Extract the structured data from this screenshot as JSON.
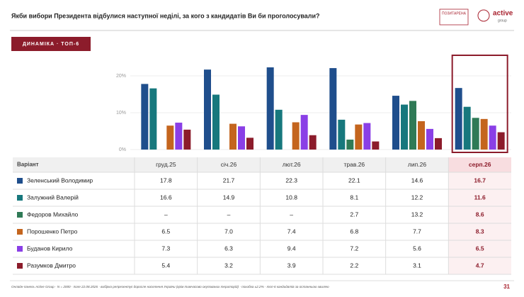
{
  "chart_data": {
    "type": "bar",
    "title": "Якби вибори Президента відбулися наступної неділі, за кого з кандидатів Ви би проголосували?",
    "badge": "ДИНАМІКА · ТОП-6",
    "table_header": "Варіант",
    "footer": "Онлайн-панель Active Group · N = 2000 · поле 22.08.2026 · вибірка репрезентує доросле населення України (крім тимчасово окупованих територій) · похибка ±2.2% · топ-6 кандидатів за останньою хвилею",
    "page_number": "31",
    "logos": [
      "ПОЗИТАРЕНА",
      "active",
      "group"
    ],
    "categories": [
      "груд.25",
      "січ.26",
      "лют.26",
      "трав.26",
      "лип.26",
      "серп.26"
    ],
    "ylim": [
      0,
      25
    ],
    "yticks": [
      {
        "value": 0,
        "label": "0%"
      },
      {
        "value": 10,
        "label": "10%"
      },
      {
        "value": 20,
        "label": "20%"
      }
    ],
    "grid": true,
    "series": [
      {
        "name": "Зеленський Володимир",
        "color": "#1f4e8c",
        "values": [
          17.8,
          21.7,
          22.3,
          22.1,
          14.6,
          16.7
        ],
        "value_labels": [
          "17.8",
          "21.7",
          "22.3",
          "22.1",
          "14.6",
          "16.7"
        ]
      },
      {
        "name": "Залужний Валерій",
        "color": "#17787d",
        "values": [
          16.6,
          14.9,
          10.8,
          8.1,
          12.2,
          11.6
        ],
        "value_labels": [
          "16.6",
          "14.9",
          "10.8",
          "8.1",
          "12.2",
          "11.6"
        ]
      },
      {
        "name": "Федоров Михайло",
        "color": "#2f7a56",
        "values": [
          null,
          null,
          null,
          2.7,
          13.2,
          8.6
        ],
        "value_labels": [
          "–",
          "–",
          "–",
          "2.7",
          "13.2",
          "8.6"
        ]
      },
      {
        "name": "Порошенко Петро",
        "color": "#c4651e",
        "values": [
          6.5,
          7.0,
          7.4,
          6.8,
          7.7,
          8.3
        ],
        "value_labels": [
          "6.5",
          "7.0",
          "7.4",
          "6.8",
          "7.7",
          "8.3"
        ]
      },
      {
        "name": "Буданов Кирило",
        "color": "#8a3fe6",
        "values": [
          7.3,
          6.3,
          9.4,
          7.2,
          5.6,
          6.5
        ],
        "value_labels": [
          "7.3",
          "6.3",
          "9.4",
          "7.2",
          "5.6",
          "6.5"
        ]
      },
      {
        "name": "Разумков Дмитро",
        "color": "#8c1c2b",
        "values": [
          5.4,
          3.2,
          3.9,
          2.2,
          3.1,
          4.7
        ],
        "value_labels": [
          "5.4",
          "3.2",
          "3.9",
          "2.2",
          "3.1",
          "4.7"
        ]
      }
    ]
  }
}
